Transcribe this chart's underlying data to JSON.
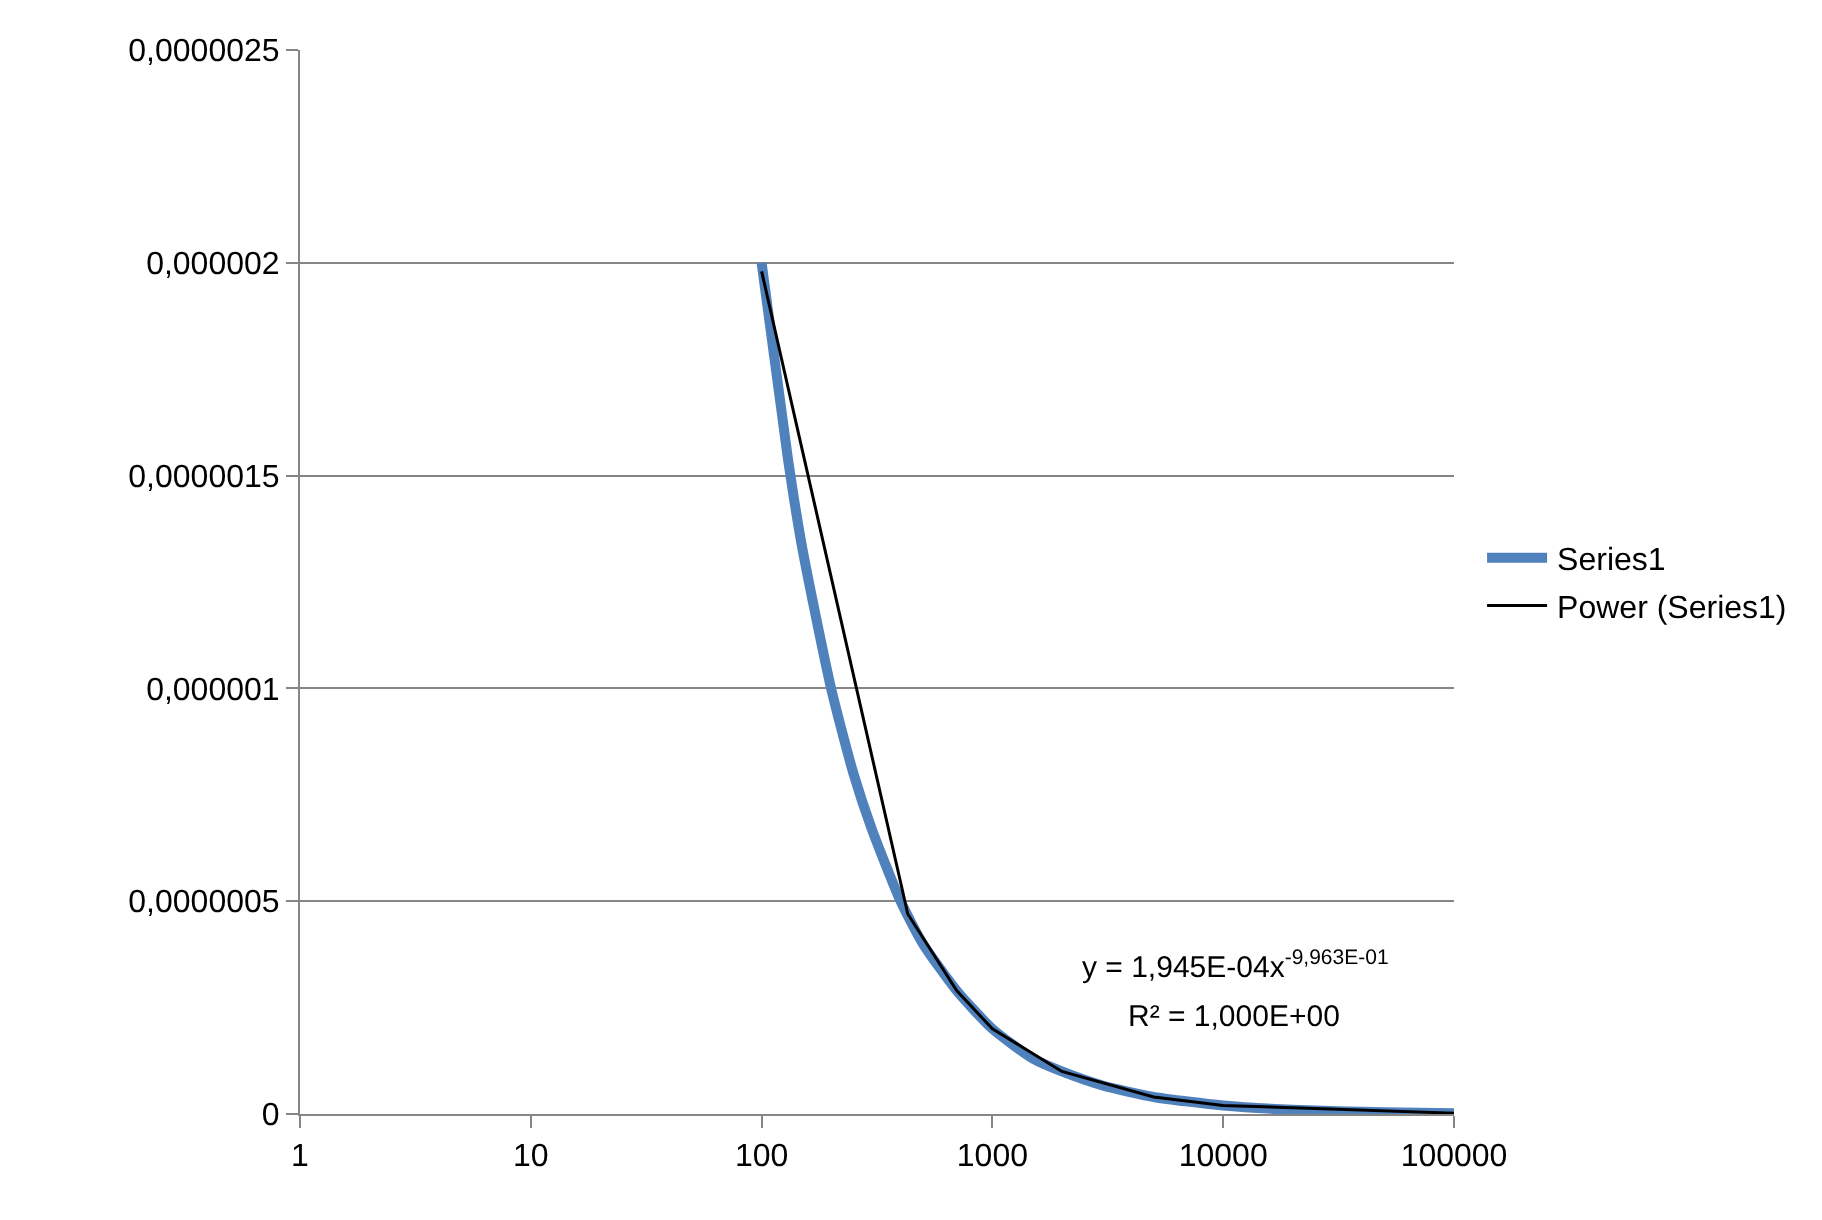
{
  "chart_data": {
    "type": "line",
    "xlim": [
      1,
      100000
    ],
    "xticks": [
      1,
      10,
      100,
      1000,
      10000,
      100000
    ],
    "log": "x",
    "ylim": [
      0,
      2.5e-06
    ],
    "yticks": [
      {
        "value": 0,
        "label": "0"
      },
      {
        "value": 5e-07,
        "label": "0,0000005"
      },
      {
        "value": 1e-06,
        "label": "0,000001"
      },
      {
        "value": 1.5e-06,
        "label": "0,0000015"
      },
      {
        "value": 2e-06,
        "label": "0,000002"
      },
      {
        "value": 2.5e-06,
        "label": "0,0000025"
      }
    ],
    "grid": "y",
    "legend": "right",
    "marker": "none",
    "line_style": "solid",
    "annotations": [
      "y = 1,945E-04x$^{-9,963E-01}$",
      "R² = 1,000E+00"
    ],
    "series": [
      {
        "name": "Series1",
        "color": "#4f81bd",
        "x": [
          100,
          130,
          150,
          200,
          250,
          300,
          400,
          500,
          700,
          1000,
          1500,
          2000,
          3000,
          5000,
          10000,
          20000,
          50000,
          100000
        ],
        "values": [
          2e-06,
          1.54e-06,
          1.33e-06,
          1e-06,
          8e-07,
          6.7e-07,
          5e-07,
          4e-07,
          2.9e-07,
          2e-07,
          1.3e-07,
          1e-07,
          6.7e-08,
          4e-08,
          2e-08,
          1e-08,
          4e-09,
          2e-09
        ]
      },
      {
        "name": "Power (Series1)",
        "color": "#000000",
        "x": [
          100,
          430,
          700,
          1000,
          2000,
          5000,
          10000,
          100000
        ],
        "values": [
          1.98e-06,
          4.7e-07,
          2.9e-07,
          2e-07,
          1e-07,
          4e-08,
          2e-08,
          2e-09
        ]
      }
    ]
  }
}
